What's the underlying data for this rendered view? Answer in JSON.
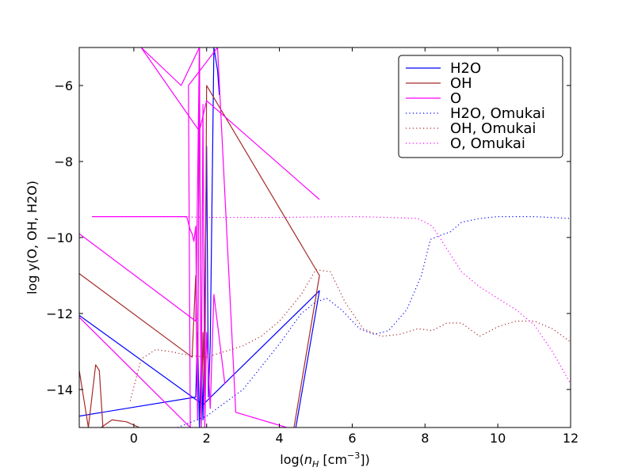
{
  "chart_data": {
    "type": "line",
    "title": "",
    "xlabel_main": "log(",
    "xlabel_var": "n",
    "xlabel_sub": "H",
    "xlabel_unit": " [cm",
    "xlabel_exp": "−3",
    "xlabel_close": "])",
    "ylabel": "log y(O, OH, H2O)",
    "xlim": [
      -1.5,
      12
    ],
    "ylim": [
      -15,
      -5
    ],
    "xticks": [
      0,
      2,
      4,
      6,
      8,
      10,
      12
    ],
    "yticks": [
      -14,
      -12,
      -10,
      -8,
      -6
    ],
    "xtick_labels": [
      "0",
      "2",
      "4",
      "6",
      "8",
      "10",
      "12"
    ],
    "ytick_labels": [
      "−14",
      "−12",
      "−10",
      "−8",
      "−6"
    ],
    "grid": false,
    "legend_position": "top-right",
    "colors": {
      "H2O": "#0000ff",
      "OH": "#a52a2a",
      "O": "#ff00ff"
    },
    "series": [
      {
        "name": "H2O",
        "color": "#0000ff",
        "style": "solid",
        "x": [
          -1.5,
          1.7,
          1.75,
          1.8,
          1.85,
          1.9,
          1.95,
          2.0,
          2.05,
          2.1,
          2.2,
          2.3,
          2.35
        ],
        "y": [
          -14.7,
          -14.2,
          -12.5,
          -15,
          -13,
          -14.8,
          -11.8,
          -7.6,
          -14.2,
          -12.8,
          -5,
          -5.6,
          -6.25
        ],
        "x2": [
          -1.5,
          1.9,
          5.1,
          4.45
        ],
        "y2": [
          -12.05,
          -14.4,
          -11.4,
          -15
        ]
      },
      {
        "name": "OH",
        "color": "#a52a2a",
        "style": "solid",
        "x": [
          -1.5,
          1.6,
          1.7,
          1.75,
          1.8,
          1.85,
          1.9,
          1.95,
          2.0,
          5.1,
          4.4
        ],
        "y": [
          -10.95,
          -13.15,
          -11,
          -14.5,
          -5,
          -15,
          -12.5,
          -14.5,
          -6.0,
          -11.0,
          -15
        ],
        "x2": [
          -1.5,
          -1.25,
          -1.05,
          -0.95,
          -0.85
        ],
        "y2": [
          -13.5,
          -15,
          -13.35,
          -13.5,
          -15
        ],
        "x3": [
          -0.9,
          -0.6,
          -0.2,
          0.15
        ],
        "y3": [
          -15,
          -14.8,
          -14.85,
          -15
        ]
      },
      {
        "name": "O",
        "color": "#ff00ff",
        "style": "solid",
        "x": [
          -1.15,
          1.45,
          1.55,
          1.6,
          1.65,
          1.7,
          1.75,
          1.8,
          1.85,
          1.9,
          1.95,
          2.0,
          2.1,
          2.2,
          2.5
        ],
        "y": [
          -9.45,
          -9.45,
          -9.8,
          -9.9,
          -10.1,
          -9.7,
          -14.8,
          -5,
          -15,
          -6.5,
          -15,
          -12.5,
          -14.5,
          -11.5,
          -13.85
        ],
        "x2": [
          -1.5,
          1.7,
          1.8,
          1.3,
          0.2,
          1.8,
          2.0,
          5.1
        ],
        "y2": [
          -9.9,
          -12.2,
          -5,
          -6.0,
          -5,
          -7.2,
          -6.4,
          -9.0
        ],
        "x3": [
          -1.5,
          1.55,
          1.5,
          2.3,
          2.8,
          4.2
        ],
        "y3": [
          -12.1,
          -15,
          -6.0,
          -5,
          -14.6,
          -15
        ]
      },
      {
        "name": "H2O, Omukai",
        "color": "#0000ff",
        "style": "dotted",
        "x": [
          1.2,
          2.0,
          3.0,
          4.0,
          4.6,
          5.0,
          5.3,
          5.7,
          6.2,
          6.6,
          7.0,
          7.5,
          7.9,
          8.15,
          8.4,
          8.7,
          9.0,
          9.5,
          10.0,
          11.0,
          12.0
        ],
        "y": [
          -15,
          -14.7,
          -14.0,
          -12.8,
          -12.0,
          -11.7,
          -11.6,
          -11.9,
          -12.4,
          -12.55,
          -12.45,
          -11.9,
          -11.0,
          -10.05,
          -9.95,
          -9.85,
          -9.6,
          -9.5,
          -9.45,
          -9.45,
          -9.5
        ],
        "x2": [],
        "y2": []
      },
      {
        "name": "OH, Omukai",
        "color": "#a52a2a",
        "style": "dotted",
        "x": [
          -0.1,
          0.2,
          0.6,
          1.0,
          1.5,
          2.0,
          2.5,
          3.0,
          3.5,
          4.0,
          4.6,
          5.0,
          5.4,
          5.8,
          6.3,
          6.8,
          7.3,
          7.8,
          8.2,
          8.6,
          9.0,
          9.5,
          10.0,
          10.5,
          11.0,
          11.5,
          12.0
        ],
        "y": [
          -14.3,
          -13.2,
          -12.95,
          -13.0,
          -13.1,
          -13.15,
          -13.0,
          -12.85,
          -12.6,
          -12.2,
          -11.5,
          -10.85,
          -10.9,
          -11.7,
          -12.4,
          -12.6,
          -12.55,
          -12.4,
          -12.45,
          -12.25,
          -12.25,
          -12.6,
          -12.35,
          -12.2,
          -12.2,
          -12.4,
          -12.75
        ],
        "x2": [],
        "y2": []
      },
      {
        "name": "O, Omukai",
        "color": "#ff00ff",
        "style": "dotted",
        "x": [
          -1.0,
          1.0,
          2.0,
          4.0,
          6.0,
          7.0,
          7.8,
          8.2,
          8.6,
          9.0,
          9.5,
          10.0,
          10.5,
          11.0,
          11.5,
          12.0
        ],
        "y": [
          -9.45,
          -9.45,
          -9.47,
          -9.47,
          -9.45,
          -9.47,
          -9.5,
          -9.7,
          -10.3,
          -10.9,
          -11.3,
          -11.6,
          -11.9,
          -12.3,
          -13.0,
          -13.85
        ],
        "x2": [],
        "y2": []
      }
    ]
  }
}
